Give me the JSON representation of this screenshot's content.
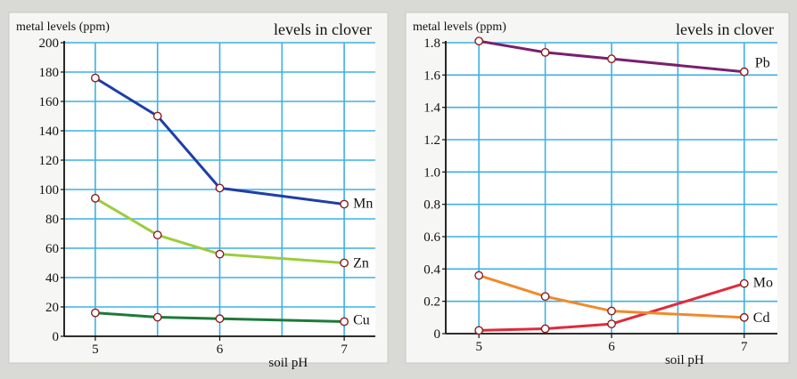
{
  "chart_data": [
    {
      "type": "line",
      "title": "levels in clover",
      "ylabel": "metal levels (ppm)",
      "xlabel": "soil pH",
      "ylim": [
        0,
        200
      ],
      "xlim": [
        4.75,
        7.25
      ],
      "y_ticks": [
        "0",
        "20",
        "40",
        "60",
        "80",
        "100",
        "120",
        "140",
        "160",
        "180",
        "200"
      ],
      "x_ticks": [
        "5",
        "6",
        "7"
      ],
      "grid": true,
      "series": [
        {
          "name": "Mn",
          "color": "#1f3fa6",
          "x": [
            5,
            5.5,
            6,
            7
          ],
          "y": [
            176,
            150,
            101,
            90
          ]
        },
        {
          "name": "Zn",
          "color": "#9ccc3c",
          "x": [
            5,
            5.5,
            6,
            7
          ],
          "y": [
            94,
            69,
            56,
            50
          ]
        },
        {
          "name": "Cu",
          "color": "#1c7a3a",
          "x": [
            5,
            5.5,
            6,
            7
          ],
          "y": [
            16,
            13,
            12,
            10
          ]
        }
      ]
    },
    {
      "type": "line",
      "title": "levels in clover",
      "ylabel": "metal levels (ppm)",
      "xlabel": "soil pH",
      "ylim": [
        0,
        1.8
      ],
      "xlim": [
        4.75,
        7.25
      ],
      "y_ticks": [
        "0",
        "0.2",
        "0.4",
        "0.6",
        "0.8",
        "1.0",
        "1.2",
        "1.4",
        "1.6",
        "1.8"
      ],
      "x_ticks": [
        "5",
        "6",
        "7"
      ],
      "grid": true,
      "series": [
        {
          "name": "Pb",
          "color": "#7a1f6e",
          "x": [
            5,
            5.5,
            6,
            7
          ],
          "y": [
            1.81,
            1.74,
            1.7,
            1.62
          ]
        },
        {
          "name": "Mo",
          "color": "#e02a3a",
          "x": [
            5,
            5.5,
            6,
            7
          ],
          "y": [
            0.02,
            0.03,
            0.06,
            0.31
          ]
        },
        {
          "name": "Cd",
          "color": "#f08a2a",
          "x": [
            5,
            5.5,
            6,
            7
          ],
          "y": [
            0.36,
            0.23,
            0.14,
            0.1
          ]
        }
      ]
    }
  ]
}
